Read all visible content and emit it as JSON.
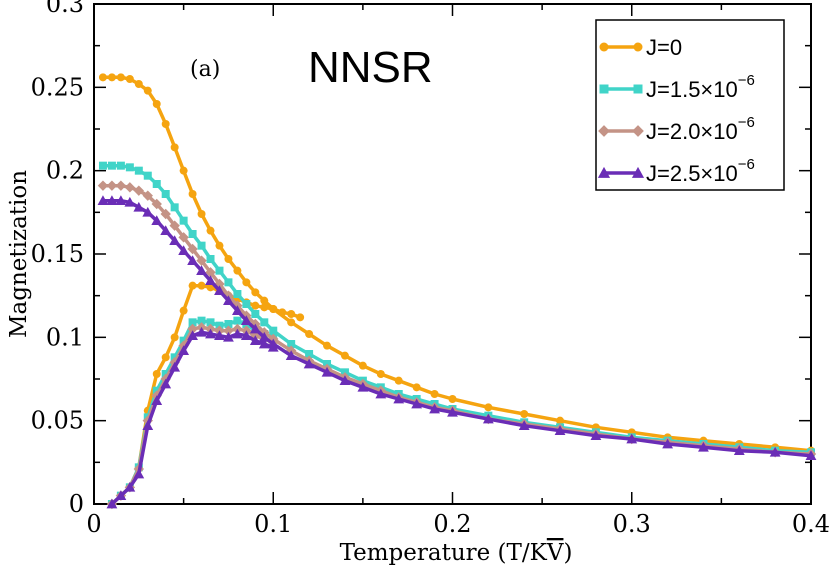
{
  "chart_data": {
    "type": "line",
    "title": "NNSR",
    "panel_label": "(a)",
    "xlabel": "Temperature (T/K",
    "xlabel_symbol": "V",
    "xlabel_close": ")",
    "ylabel": "Magnetization",
    "xlim": [
      0,
      0.4
    ],
    "ylim": [
      0,
      0.3
    ],
    "x_ticks": [
      {
        "value": 0,
        "label": "0"
      },
      {
        "value": 0.1,
        "label": "0.1"
      },
      {
        "value": 0.2,
        "label": "0.2"
      },
      {
        "value": 0.3,
        "label": "0.3"
      },
      {
        "value": 0.4,
        "label": "0.4"
      }
    ],
    "y_ticks": [
      {
        "value": 0,
        "label": "0"
      },
      {
        "value": 0.05,
        "label": "0.05"
      },
      {
        "value": 0.1,
        "label": "0.1"
      },
      {
        "value": 0.15,
        "label": "0.15"
      },
      {
        "value": 0.2,
        "label": "0.2"
      },
      {
        "value": 0.25,
        "label": "0.25"
      },
      {
        "value": 0.3,
        "label": "0.3"
      }
    ],
    "grid": false,
    "legend_position": "top-right",
    "series": [
      {
        "name": "J=0",
        "legend_main": "J=0",
        "legend_sup": "",
        "color": "#f5a410",
        "marker": "circle",
        "upper": [
          [
            0.005,
            0.256
          ],
          [
            0.01,
            0.256
          ],
          [
            0.015,
            0.256
          ],
          [
            0.02,
            0.255
          ],
          [
            0.025,
            0.252
          ],
          [
            0.03,
            0.248
          ],
          [
            0.035,
            0.24
          ],
          [
            0.04,
            0.228
          ],
          [
            0.045,
            0.214
          ],
          [
            0.05,
            0.2
          ],
          [
            0.055,
            0.186
          ],
          [
            0.06,
            0.174
          ],
          [
            0.065,
            0.164
          ],
          [
            0.07,
            0.155
          ],
          [
            0.075,
            0.147
          ],
          [
            0.08,
            0.14
          ],
          [
            0.085,
            0.133
          ],
          [
            0.09,
            0.127
          ],
          [
            0.095,
            0.122
          ],
          [
            0.1,
            0.117
          ],
          [
            0.11,
            0.109
          ],
          [
            0.12,
            0.102
          ],
          [
            0.13,
            0.095
          ],
          [
            0.14,
            0.089
          ],
          [
            0.15,
            0.083
          ],
          [
            0.16,
            0.078
          ],
          [
            0.17,
            0.074
          ],
          [
            0.18,
            0.07
          ],
          [
            0.19,
            0.066
          ],
          [
            0.2,
            0.063
          ],
          [
            0.22,
            0.058
          ],
          [
            0.24,
            0.054
          ],
          [
            0.26,
            0.05
          ],
          [
            0.28,
            0.046
          ],
          [
            0.3,
            0.043
          ],
          [
            0.32,
            0.04
          ],
          [
            0.34,
            0.038
          ],
          [
            0.36,
            0.036
          ],
          [
            0.38,
            0.034
          ],
          [
            0.4,
            0.032
          ]
        ],
        "lower": [
          [
            0.01,
            0.0
          ],
          [
            0.015,
            0.005
          ],
          [
            0.02,
            0.01
          ],
          [
            0.025,
            0.022
          ],
          [
            0.03,
            0.056
          ],
          [
            0.035,
            0.078
          ],
          [
            0.04,
            0.088
          ],
          [
            0.045,
            0.1
          ],
          [
            0.05,
            0.116
          ],
          [
            0.055,
            0.131
          ],
          [
            0.06,
            0.131
          ],
          [
            0.065,
            0.13
          ],
          [
            0.07,
            0.128
          ],
          [
            0.075,
            0.125
          ],
          [
            0.08,
            0.123
          ],
          [
            0.085,
            0.121
          ],
          [
            0.09,
            0.119
          ],
          [
            0.095,
            0.118
          ],
          [
            0.1,
            0.117
          ],
          [
            0.105,
            0.115
          ],
          [
            0.11,
            0.114
          ],
          [
            0.115,
            0.112
          ]
        ]
      },
      {
        "name": "J=1.5×10^-6",
        "legend_main": "J=1.5×10",
        "legend_sup": "−6",
        "color": "#40d4c8",
        "marker": "square",
        "upper": [
          [
            0.005,
            0.203
          ],
          [
            0.01,
            0.203
          ],
          [
            0.015,
            0.203
          ],
          [
            0.02,
            0.202
          ],
          [
            0.025,
            0.2
          ],
          [
            0.03,
            0.197
          ],
          [
            0.035,
            0.192
          ],
          [
            0.04,
            0.186
          ],
          [
            0.045,
            0.178
          ],
          [
            0.05,
            0.17
          ],
          [
            0.055,
            0.162
          ],
          [
            0.06,
            0.155
          ],
          [
            0.065,
            0.147
          ],
          [
            0.07,
            0.14
          ],
          [
            0.075,
            0.133
          ],
          [
            0.08,
            0.126
          ],
          [
            0.085,
            0.12
          ],
          [
            0.09,
            0.114
          ],
          [
            0.095,
            0.109
          ],
          [
            0.1,
            0.104
          ],
          [
            0.11,
            0.096
          ],
          [
            0.12,
            0.09
          ],
          [
            0.13,
            0.084
          ],
          [
            0.14,
            0.079
          ],
          [
            0.15,
            0.074
          ],
          [
            0.16,
            0.07
          ],
          [
            0.17,
            0.066
          ],
          [
            0.18,
            0.063
          ],
          [
            0.19,
            0.06
          ],
          [
            0.2,
            0.057
          ],
          [
            0.22,
            0.053
          ],
          [
            0.24,
            0.049
          ],
          [
            0.26,
            0.046
          ],
          [
            0.28,
            0.043
          ],
          [
            0.3,
            0.04
          ],
          [
            0.32,
            0.038
          ],
          [
            0.34,
            0.036
          ],
          [
            0.36,
            0.034
          ],
          [
            0.38,
            0.032
          ],
          [
            0.4,
            0.031
          ]
        ],
        "lower": [
          [
            0.01,
            0.0
          ],
          [
            0.015,
            0.005
          ],
          [
            0.02,
            0.01
          ],
          [
            0.025,
            0.022
          ],
          [
            0.03,
            0.052
          ],
          [
            0.035,
            0.068
          ],
          [
            0.04,
            0.078
          ],
          [
            0.045,
            0.088
          ],
          [
            0.05,
            0.098
          ],
          [
            0.055,
            0.109
          ],
          [
            0.06,
            0.11
          ],
          [
            0.065,
            0.109
          ],
          [
            0.07,
            0.107
          ],
          [
            0.075,
            0.108
          ],
          [
            0.08,
            0.11
          ],
          [
            0.085,
            0.108
          ],
          [
            0.09,
            0.104
          ],
          [
            0.095,
            0.102
          ],
          [
            0.1,
            0.1
          ]
        ]
      },
      {
        "name": "J=2.0×10^-6",
        "legend_main": "J=2.0×10",
        "legend_sup": "−6",
        "color": "#c49386",
        "marker": "diamond",
        "upper": [
          [
            0.005,
            0.191
          ],
          [
            0.01,
            0.191
          ],
          [
            0.015,
            0.191
          ],
          [
            0.02,
            0.19
          ],
          [
            0.025,
            0.188
          ],
          [
            0.03,
            0.185
          ],
          [
            0.035,
            0.18
          ],
          [
            0.04,
            0.174
          ],
          [
            0.045,
            0.167
          ],
          [
            0.05,
            0.16
          ],
          [
            0.055,
            0.153
          ],
          [
            0.06,
            0.146
          ],
          [
            0.065,
            0.139
          ],
          [
            0.07,
            0.132
          ],
          [
            0.075,
            0.125
          ],
          [
            0.08,
            0.119
          ],
          [
            0.085,
            0.113
          ],
          [
            0.09,
            0.108
          ],
          [
            0.095,
            0.103
          ],
          [
            0.1,
            0.099
          ],
          [
            0.11,
            0.092
          ],
          [
            0.12,
            0.086
          ],
          [
            0.13,
            0.081
          ],
          [
            0.14,
            0.076
          ],
          [
            0.15,
            0.072
          ],
          [
            0.16,
            0.068
          ],
          [
            0.17,
            0.064
          ],
          [
            0.18,
            0.061
          ],
          [
            0.19,
            0.058
          ],
          [
            0.2,
            0.056
          ],
          [
            0.22,
            0.051
          ],
          [
            0.24,
            0.048
          ],
          [
            0.26,
            0.045
          ],
          [
            0.28,
            0.042
          ],
          [
            0.3,
            0.039
          ],
          [
            0.32,
            0.037
          ],
          [
            0.34,
            0.035
          ],
          [
            0.36,
            0.033
          ],
          [
            0.38,
            0.031
          ],
          [
            0.4,
            0.03
          ]
        ],
        "lower": [
          [
            0.01,
            0.0
          ],
          [
            0.015,
            0.005
          ],
          [
            0.02,
            0.01
          ],
          [
            0.025,
            0.021
          ],
          [
            0.03,
            0.05
          ],
          [
            0.035,
            0.065
          ],
          [
            0.04,
            0.075
          ],
          [
            0.045,
            0.085
          ],
          [
            0.05,
            0.095
          ],
          [
            0.055,
            0.105
          ],
          [
            0.06,
            0.106
          ],
          [
            0.065,
            0.105
          ],
          [
            0.07,
            0.104
          ],
          [
            0.075,
            0.104
          ],
          [
            0.08,
            0.105
          ],
          [
            0.085,
            0.104
          ],
          [
            0.09,
            0.101
          ],
          [
            0.095,
            0.099
          ],
          [
            0.1,
            0.097
          ]
        ]
      },
      {
        "name": "J=2.5×10^-6",
        "legend_main": "J=2.5×10",
        "legend_sup": "−6",
        "color": "#6a2db6",
        "marker": "triangle",
        "upper": [
          [
            0.005,
            0.182
          ],
          [
            0.01,
            0.182
          ],
          [
            0.015,
            0.182
          ],
          [
            0.02,
            0.181
          ],
          [
            0.025,
            0.178
          ],
          [
            0.03,
            0.175
          ],
          [
            0.035,
            0.17
          ],
          [
            0.04,
            0.164
          ],
          [
            0.045,
            0.158
          ],
          [
            0.05,
            0.152
          ],
          [
            0.055,
            0.146
          ],
          [
            0.06,
            0.14
          ],
          [
            0.065,
            0.134
          ],
          [
            0.07,
            0.128
          ],
          [
            0.075,
            0.122
          ],
          [
            0.08,
            0.116
          ],
          [
            0.085,
            0.11
          ],
          [
            0.09,
            0.105
          ],
          [
            0.095,
            0.1
          ],
          [
            0.1,
            0.096
          ],
          [
            0.11,
            0.089
          ],
          [
            0.12,
            0.084
          ],
          [
            0.13,
            0.079
          ],
          [
            0.14,
            0.074
          ],
          [
            0.15,
            0.07
          ],
          [
            0.16,
            0.066
          ],
          [
            0.17,
            0.063
          ],
          [
            0.18,
            0.06
          ],
          [
            0.19,
            0.057
          ],
          [
            0.2,
            0.055
          ],
          [
            0.22,
            0.051
          ],
          [
            0.24,
            0.047
          ],
          [
            0.26,
            0.044
          ],
          [
            0.28,
            0.041
          ],
          [
            0.3,
            0.039
          ],
          [
            0.32,
            0.036
          ],
          [
            0.34,
            0.034
          ],
          [
            0.36,
            0.032
          ],
          [
            0.38,
            0.031
          ],
          [
            0.4,
            0.029
          ]
        ],
        "lower": [
          [
            0.01,
            0.0
          ],
          [
            0.015,
            0.005
          ],
          [
            0.02,
            0.01
          ],
          [
            0.025,
            0.018
          ],
          [
            0.03,
            0.047
          ],
          [
            0.035,
            0.062
          ],
          [
            0.04,
            0.072
          ],
          [
            0.045,
            0.082
          ],
          [
            0.05,
            0.092
          ],
          [
            0.055,
            0.101
          ],
          [
            0.06,
            0.103
          ],
          [
            0.065,
            0.102
          ],
          [
            0.07,
            0.101
          ],
          [
            0.075,
            0.1
          ],
          [
            0.08,
            0.102
          ],
          [
            0.085,
            0.101
          ],
          [
            0.09,
            0.098
          ],
          [
            0.095,
            0.096
          ],
          [
            0.1,
            0.094
          ]
        ]
      }
    ]
  }
}
